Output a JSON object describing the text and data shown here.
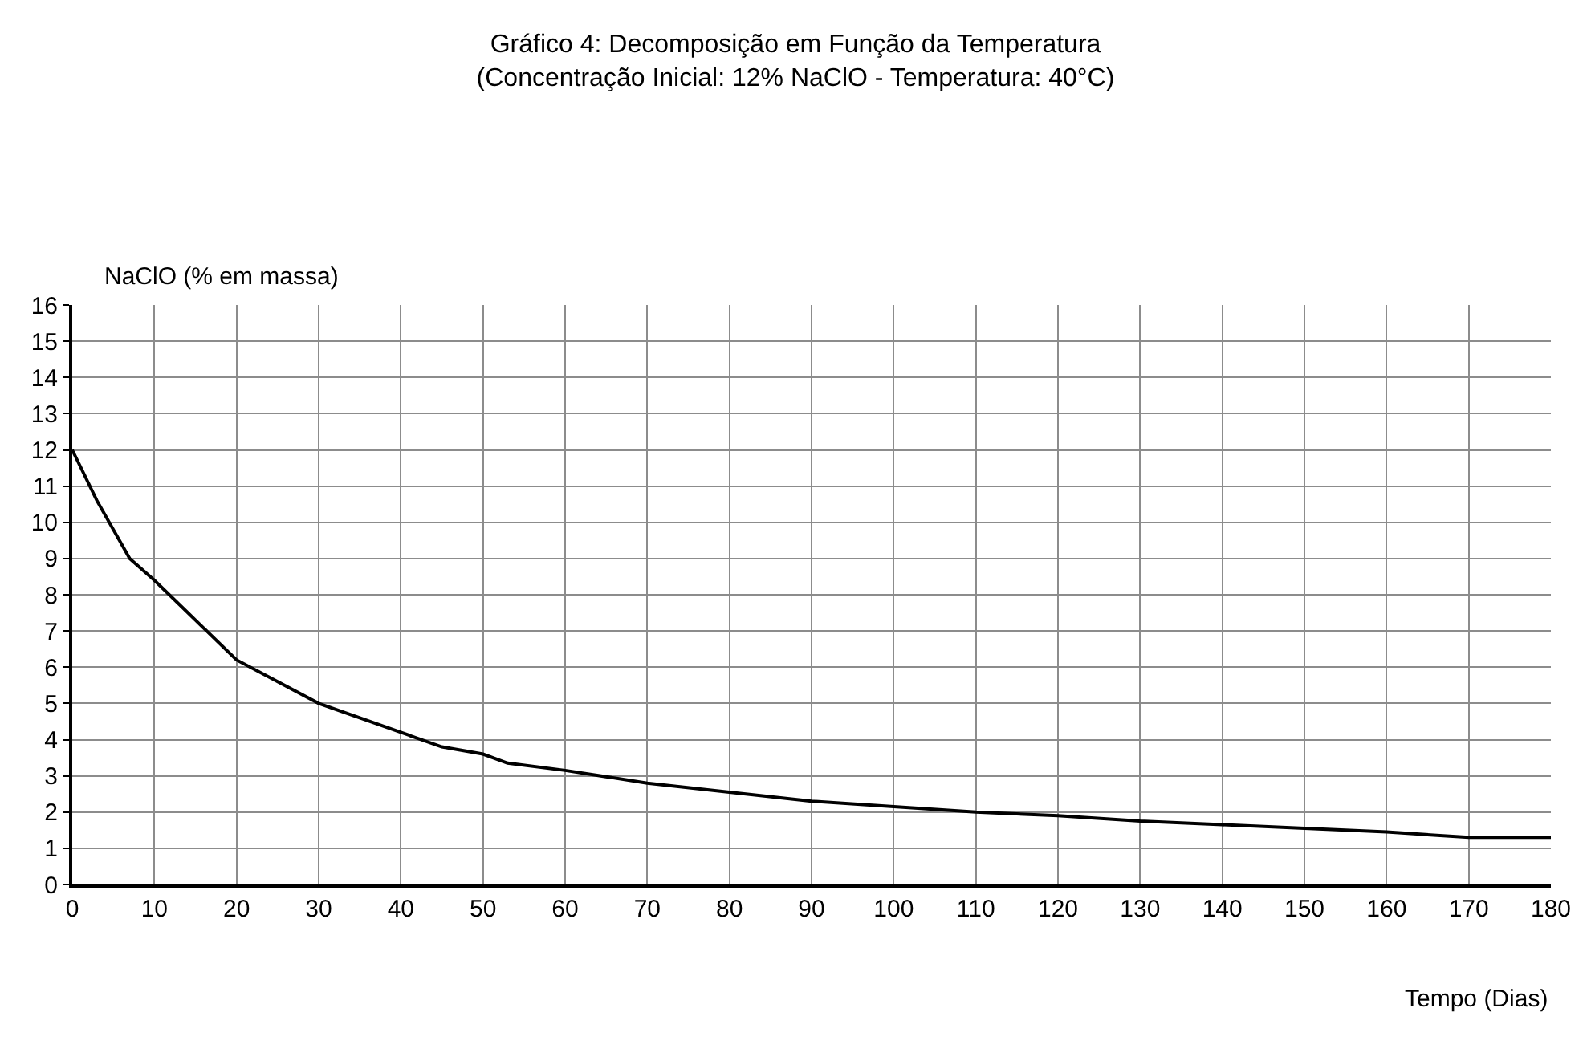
{
  "chart_data": {
    "type": "line",
    "title": "Gráfico 4: Decomposição em Função da Temperatura",
    "subtitle": "(Concentração Inicial: 12% NaClO - Temperatura: 40°C)",
    "xlabel": "Tempo (Dias)",
    "ylabel": "NaClO (% em massa)",
    "x": [
      0,
      3,
      7,
      10,
      15,
      20,
      25,
      30,
      35,
      40,
      45,
      50,
      53,
      60,
      70,
      80,
      90,
      100,
      110,
      120,
      130,
      140,
      150,
      160,
      170,
      180
    ],
    "series": [
      {
        "color": "#000000",
        "values": [
          12,
          10.6,
          9,
          8.4,
          7.3,
          6.2,
          5.6,
          5.0,
          4.6,
          4.2,
          3.8,
          3.6,
          3.35,
          3.15,
          2.8,
          2.55,
          2.3,
          2.15,
          2.0,
          1.9,
          1.75,
          1.65,
          1.55,
          1.45,
          1.3,
          1.3
        ]
      }
    ],
    "xlim": [
      0,
      180
    ],
    "xticks": [
      0,
      10,
      20,
      30,
      40,
      50,
      60,
      70,
      80,
      90,
      100,
      110,
      120,
      130,
      140,
      150,
      160,
      170,
      180
    ],
    "ylim": [
      0,
      16
    ],
    "yticks": [
      0,
      1,
      2,
      3,
      4,
      5,
      6,
      7,
      8,
      9,
      10,
      11,
      12,
      13,
      14,
      15,
      16
    ],
    "grid": true,
    "marker": "none",
    "line_style": "solid"
  }
}
